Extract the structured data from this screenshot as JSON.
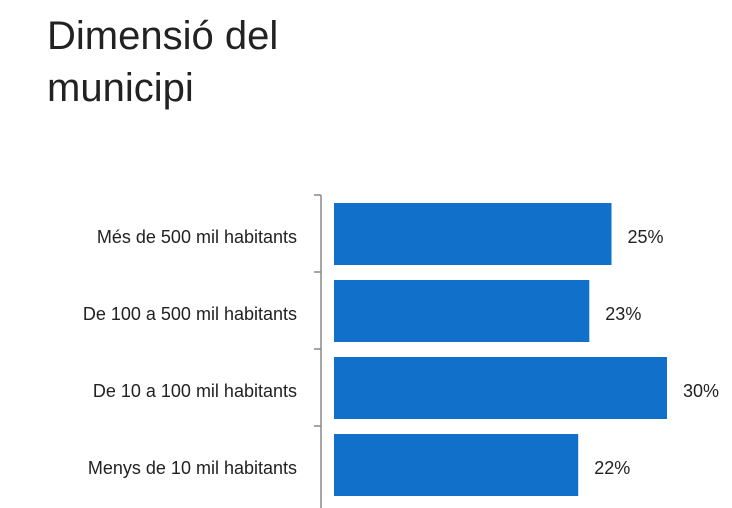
{
  "chart_data": {
    "type": "bar",
    "orientation": "horizontal",
    "title": "Dimensió del municipi",
    "categories": [
      "Més de 500 mil habitants",
      "De 100 a 500 mil habitants",
      "De 10 a 100 mil habitants",
      "Menys de 10 mil habitants"
    ],
    "values": [
      25,
      23,
      30,
      22
    ],
    "value_labels": [
      "25%",
      "23%",
      "30%",
      "22%"
    ],
    "color": "#1170c9"
  }
}
